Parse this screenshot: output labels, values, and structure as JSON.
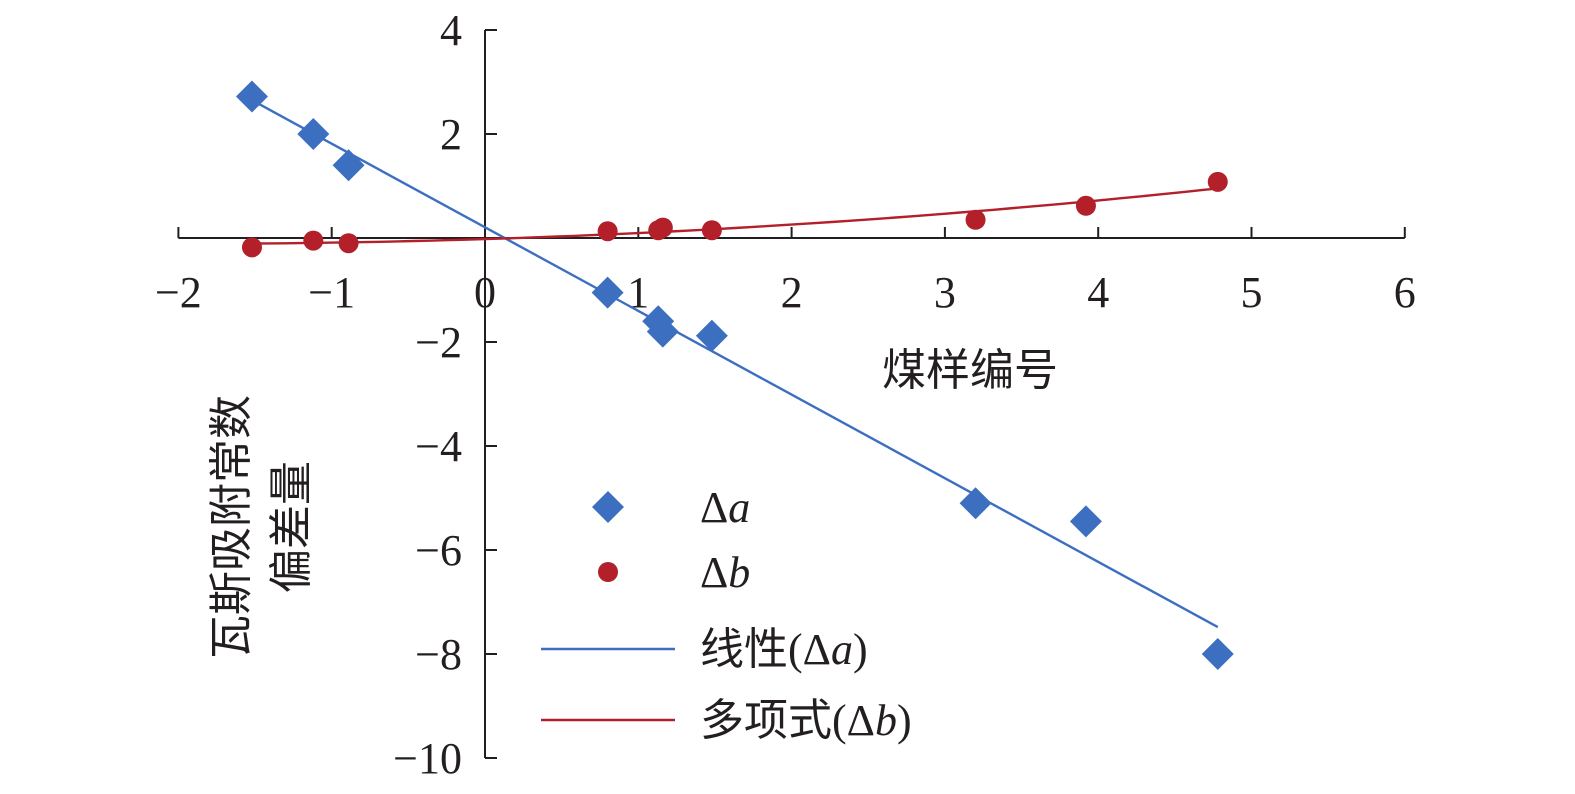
{
  "chart_data": {
    "type": "scatter",
    "title": "",
    "xlabel": "煤样编号",
    "ylabel_lines": [
      "瓦斯吸附常数",
      "偏差量"
    ],
    "xlim": [
      -2,
      6
    ],
    "ylim": [
      -10,
      4
    ],
    "x_ticks": [
      -2,
      -1,
      0,
      1,
      2,
      3,
      4,
      5,
      6
    ],
    "x_tick_labels": [
      "−2",
      "−1",
      "0",
      "1",
      "2",
      "3",
      "4",
      "5",
      "6"
    ],
    "y_ticks": [
      4,
      2,
      -2,
      -4,
      -6,
      -8,
      -10
    ],
    "y_tick_labels": [
      "4",
      "2",
      "−2",
      "−4",
      "−6",
      "−8",
      "−10"
    ],
    "legend_position": "lower-center",
    "series": [
      {
        "name": "Δa",
        "legend_label": {
          "prefix": "Δ",
          "var": "a"
        },
        "marker": "diamond",
        "color": "#3d6fc1",
        "points": [
          [
            -1.52,
            2.72
          ],
          [
            -1.12,
            2.0
          ],
          [
            -0.89,
            1.4
          ],
          [
            0.8,
            -1.05
          ],
          [
            1.13,
            -1.6
          ],
          [
            1.16,
            -1.8
          ],
          [
            1.48,
            -1.88
          ],
          [
            3.2,
            -5.1
          ],
          [
            3.92,
            -5.45
          ],
          [
            4.78,
            -8.0
          ]
        ]
      },
      {
        "name": "Δb",
        "legend_label": {
          "prefix": "Δ",
          "var": "b"
        },
        "marker": "circle",
        "color": "#b3202a",
        "points": [
          [
            -1.52,
            -0.18
          ],
          [
            -1.12,
            -0.05
          ],
          [
            -0.89,
            -0.1
          ],
          [
            0.8,
            0.13
          ],
          [
            1.13,
            0.15
          ],
          [
            1.16,
            0.2
          ],
          [
            1.48,
            0.15
          ],
          [
            3.2,
            0.35
          ],
          [
            3.92,
            0.62
          ],
          [
            4.78,
            1.08
          ]
        ]
      }
    ],
    "trendlines": [
      {
        "name": "线性(Δa)",
        "legend_label": {
          "prefix": "线性(Δ",
          "var": "a",
          "suffix": ")"
        },
        "kind": "linear",
        "color": "#3d6fc1",
        "x_range": [
          -1.52,
          4.78
        ]
      },
      {
        "name": "多项式(Δb)",
        "legend_label": {
          "prefix": "多项式(Δ",
          "var": "b",
          "suffix": ")"
        },
        "kind": "polynomial",
        "color": "#b3202a",
        "x_range": [
          -1.52,
          4.78
        ]
      }
    ]
  }
}
